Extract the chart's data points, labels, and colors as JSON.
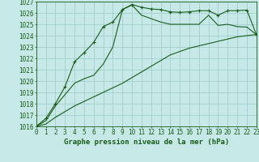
{
  "title": "Graphe pression niveau de la mer (hPa)",
  "background_color": "#c6e8e6",
  "grid_color": "#a2cece",
  "line_color": "#1a5c1a",
  "x_min": 0,
  "x_max": 23,
  "y_min": 1016,
  "y_max": 1027,
  "series": [
    {
      "x": [
        0,
        1,
        2,
        3,
        4,
        5,
        6,
        7,
        8,
        9,
        10,
        11,
        12,
        13,
        14,
        15,
        16,
        17,
        18,
        19,
        20,
        21,
        22,
        23
      ],
      "y": [
        1016.0,
        1016.7,
        1018.0,
        1019.5,
        1021.7,
        1022.5,
        1023.4,
        1024.8,
        1025.2,
        1026.3,
        1026.75,
        1026.5,
        1026.35,
        1026.3,
        1026.1,
        1026.05,
        1026.1,
        1026.2,
        1026.2,
        1025.8,
        1026.2,
        1026.2,
        1026.25,
        1024.1
      ],
      "marker": "+"
    },
    {
      "x": [
        0,
        1,
        2,
        3,
        4,
        5,
        6,
        7,
        8,
        9,
        10,
        11,
        12,
        13,
        14,
        15,
        16,
        17,
        18,
        19,
        20,
        21,
        22,
        23
      ],
      "y": [
        1016.0,
        1016.5,
        1017.8,
        1018.8,
        1019.8,
        1020.2,
        1020.5,
        1021.5,
        1023.0,
        1026.3,
        1026.7,
        1025.8,
        1025.5,
        1025.2,
        1025.0,
        1025.0,
        1025.0,
        1025.0,
        1025.8,
        1024.9,
        1025.0,
        1024.8,
        1024.75,
        1024.1
      ],
      "marker": null
    },
    {
      "x": [
        0,
        1,
        2,
        3,
        4,
        5,
        6,
        7,
        8,
        9,
        10,
        11,
        12,
        13,
        14,
        15,
        16,
        17,
        18,
        19,
        20,
        21,
        22,
        23
      ],
      "y": [
        1016.0,
        1016.2,
        1016.8,
        1017.3,
        1017.8,
        1018.2,
        1018.6,
        1019.0,
        1019.4,
        1019.8,
        1020.3,
        1020.8,
        1021.3,
        1021.8,
        1022.3,
        1022.6,
        1022.9,
        1023.1,
        1023.3,
        1023.5,
        1023.7,
        1023.9,
        1024.0,
        1024.1
      ],
      "marker": null
    }
  ],
  "tick_fontsize": 5.5,
  "xlabel_fontsize": 6.5
}
